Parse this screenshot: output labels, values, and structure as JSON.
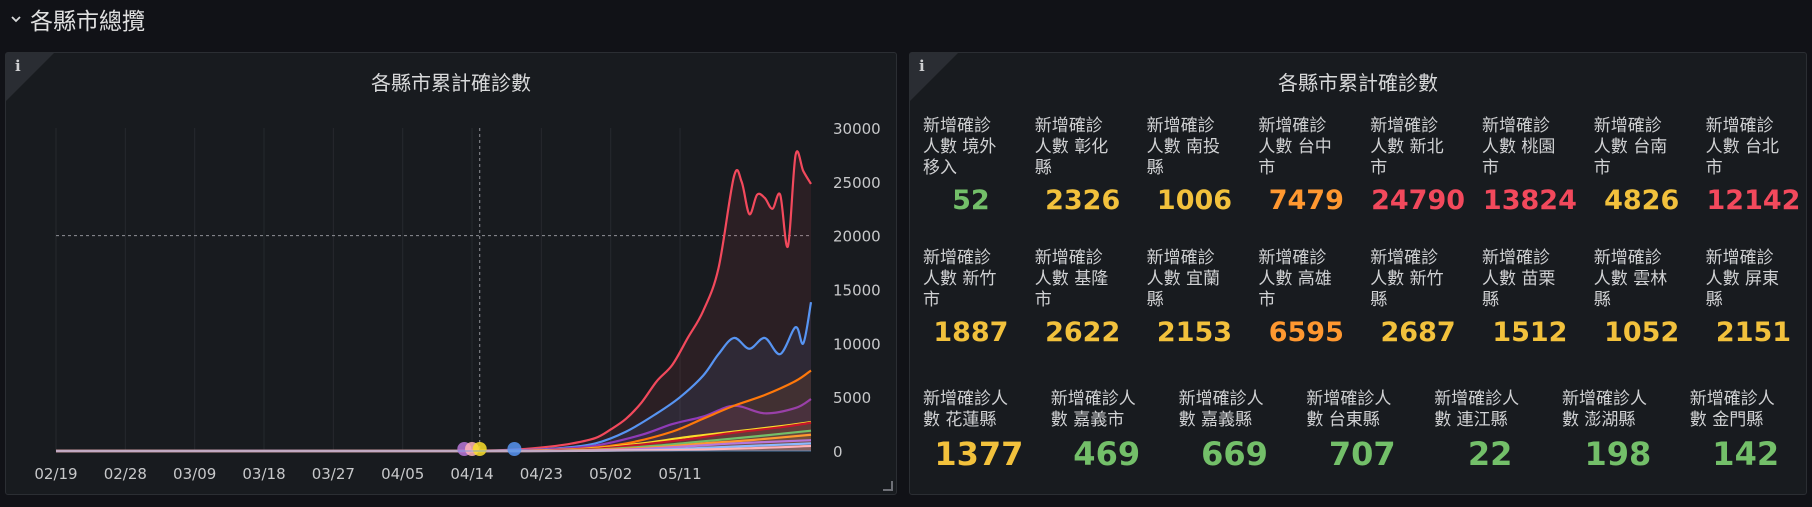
{
  "row": {
    "title": "各縣市總攬",
    "chevron_icon": "chevron-down-icon"
  },
  "left_panel": {
    "title": "各縣市累計確診數",
    "info_icon": "i"
  },
  "right_panel": {
    "title": "各縣市累計確診數",
    "info_icon": "i"
  },
  "colors": {
    "green": "#73bf69",
    "yellow": "#fade2a",
    "gold": "#f2c13c",
    "orange": "#ff9830",
    "red": "#f2495c"
  },
  "stats_row1": [
    {
      "label": "新增確診\n人數 境外\n移入",
      "value": "52",
      "color": "#73bf69"
    },
    {
      "label": "新增確診\n人數 彰化\n縣",
      "value": "2326",
      "color": "#f2c13c"
    },
    {
      "label": "新增確診\n人數 南投\n縣",
      "value": "1006",
      "color": "#f2c13c"
    },
    {
      "label": "新增確診\n人數 台中\n市",
      "value": "7479",
      "color": "#ff9830"
    },
    {
      "label": "新增確診\n人數 新北\n市",
      "value": "24790",
      "color": "#f2495c"
    },
    {
      "label": "新增確診\n人數 桃園\n市",
      "value": "13824",
      "color": "#f2495c"
    },
    {
      "label": "新增確診\n人數 台南\n市",
      "value": "4826",
      "color": "#f2c13c"
    },
    {
      "label": "新增確診\n人數 台北\n市",
      "value": "12142",
      "color": "#f2495c"
    }
  ],
  "stats_row2": [
    {
      "label": "新增確診\n人數 新竹\n市",
      "value": "1887",
      "color": "#f2c13c"
    },
    {
      "label": "新增確診\n人數 基隆\n市",
      "value": "2622",
      "color": "#f2c13c"
    },
    {
      "label": "新增確診\n人數 宜蘭\n縣",
      "value": "2153",
      "color": "#f2c13c"
    },
    {
      "label": "新增確診\n人數 高雄\n市",
      "value": "6595",
      "color": "#ff9830"
    },
    {
      "label": "新增確診\n人數 新竹\n縣",
      "value": "2687",
      "color": "#f2c13c"
    },
    {
      "label": "新增確診\n人數 苗栗\n縣",
      "value": "1512",
      "color": "#f2c13c"
    },
    {
      "label": "新增確診\n人數 雲林\n縣",
      "value": "1052",
      "color": "#f2c13c"
    },
    {
      "label": "新增確診\n人數 屏東\n縣",
      "value": "2151",
      "color": "#f2c13c"
    }
  ],
  "stats_row3": [
    {
      "label": "新增確診人\n數 花蓮縣",
      "value": "1377",
      "color": "#f2c13c"
    },
    {
      "label": "新增確診人\n數 嘉義市",
      "value": "469",
      "color": "#73bf69"
    },
    {
      "label": "新增確診人\n數 嘉義縣",
      "value": "669",
      "color": "#73bf69"
    },
    {
      "label": "新增確診人\n數 台東縣",
      "value": "707",
      "color": "#73bf69"
    },
    {
      "label": "新增確診人\n數 連江縣",
      "value": "22",
      "color": "#73bf69"
    },
    {
      "label": "新增確診人\n數 澎湖縣",
      "value": "198",
      "color": "#73bf69"
    },
    {
      "label": "新增確診人\n數 金門縣",
      "value": "142",
      "color": "#73bf69"
    }
  ],
  "chart_data": {
    "type": "line",
    "title": "各縣市累計確診數",
    "x_ticks": [
      "02/19",
      "02/28",
      "03/09",
      "03/18",
      "03/27",
      "04/05",
      "04/14",
      "04/23",
      "05/02",
      "05/11"
    ],
    "y_ticks": [
      0,
      5000,
      10000,
      15000,
      20000,
      25000,
      30000
    ],
    "ylim": [
      0,
      30000
    ],
    "x_range_days": [
      0,
      98
    ],
    "threshold": 20000,
    "crosshair_x_day": 55,
    "series": [
      {
        "color": "#f2495c",
        "points": [
          [
            0,
            0
          ],
          [
            50,
            0
          ],
          [
            55,
            30
          ],
          [
            60,
            150
          ],
          [
            64,
            400
          ],
          [
            67,
            700
          ],
          [
            70,
            1200
          ],
          [
            72,
            2000
          ],
          [
            74,
            3000
          ],
          [
            76,
            4500
          ],
          [
            78,
            6500
          ],
          [
            80,
            8000
          ],
          [
            82,
            10500
          ],
          [
            84,
            13000
          ],
          [
            86,
            17000
          ],
          [
            88,
            25500
          ],
          [
            89,
            25000
          ],
          [
            90,
            22000
          ],
          [
            91,
            23800
          ],
          [
            92,
            23500
          ],
          [
            93,
            22500
          ],
          [
            94,
            23800
          ],
          [
            95,
            19000
          ],
          [
            96,
            27500
          ],
          [
            97,
            26000
          ],
          [
            98,
            24800
          ]
        ]
      },
      {
        "color": "#5794f2",
        "points": [
          [
            0,
            0
          ],
          [
            50,
            0
          ],
          [
            56,
            40
          ],
          [
            62,
            120
          ],
          [
            66,
            300
          ],
          [
            70,
            700
          ],
          [
            74,
            1800
          ],
          [
            78,
            3500
          ],
          [
            81,
            5000
          ],
          [
            84,
            7000
          ],
          [
            86,
            9000
          ],
          [
            88,
            10500
          ],
          [
            90,
            9500
          ],
          [
            92,
            10500
          ],
          [
            94,
            9000
          ],
          [
            96,
            11500
          ],
          [
            97,
            10000
          ],
          [
            98,
            13824
          ]
        ]
      },
      {
        "color": "#8f3bb8",
        "points": [
          [
            0,
            0
          ],
          [
            50,
            0
          ],
          [
            58,
            30
          ],
          [
            64,
            150
          ],
          [
            70,
            500
          ],
          [
            76,
            1500
          ],
          [
            80,
            2500
          ],
          [
            84,
            3200
          ],
          [
            88,
            4200
          ],
          [
            92,
            3500
          ],
          [
            96,
            4000
          ],
          [
            98,
            4826
          ]
        ]
      },
      {
        "color": "#ff780a",
        "points": [
          [
            0,
            0
          ],
          [
            55,
            0
          ],
          [
            62,
            60
          ],
          [
            68,
            200
          ],
          [
            74,
            700
          ],
          [
            80,
            1800
          ],
          [
            84,
            3000
          ],
          [
            88,
            4200
          ],
          [
            92,
            5200
          ],
          [
            96,
            6500
          ],
          [
            98,
            7479
          ]
        ]
      },
      {
        "color": "#fade2a",
        "points": [
          [
            0,
            0
          ],
          [
            56,
            0
          ],
          [
            64,
            80
          ],
          [
            70,
            250
          ],
          [
            76,
            700
          ],
          [
            82,
            1300
          ],
          [
            88,
            1800
          ],
          [
            94,
            2300
          ],
          [
            98,
            2687
          ]
        ]
      },
      {
        "color": "#c4162a",
        "points": [
          [
            0,
            0
          ],
          [
            56,
            0
          ],
          [
            64,
            60
          ],
          [
            70,
            200
          ],
          [
            76,
            600
          ],
          [
            82,
            1100
          ],
          [
            88,
            1700
          ],
          [
            94,
            2200
          ],
          [
            98,
            2622
          ]
        ]
      },
      {
        "color": "#73bf69",
        "points": [
          [
            0,
            0
          ],
          [
            58,
            0
          ],
          [
            66,
            50
          ],
          [
            72,
            200
          ],
          [
            78,
            500
          ],
          [
            84,
            900
          ],
          [
            90,
            1300
          ],
          [
            98,
            1887
          ]
        ]
      },
      {
        "color": "#ff9830",
        "points": [
          [
            0,
            0
          ],
          [
            58,
            0
          ],
          [
            66,
            40
          ],
          [
            72,
            150
          ],
          [
            78,
            350
          ],
          [
            84,
            700
          ],
          [
            90,
            1000
          ],
          [
            98,
            1512
          ]
        ]
      },
      {
        "color": "#b877d9",
        "points": [
          [
            0,
            0
          ],
          [
            58,
            0
          ],
          [
            68,
            40
          ],
          [
            74,
            140
          ],
          [
            80,
            350
          ],
          [
            88,
            700
          ],
          [
            98,
            1006
          ]
        ]
      },
      {
        "color": "#8ab8ff",
        "points": [
          [
            0,
            0
          ],
          [
            60,
            0
          ],
          [
            70,
            30
          ],
          [
            78,
            120
          ],
          [
            86,
            350
          ],
          [
            98,
            707
          ]
        ]
      },
      {
        "color": "#ffb3b8",
        "points": [
          [
            0,
            0
          ],
          [
            60,
            0
          ],
          [
            70,
            20
          ],
          [
            80,
            90
          ],
          [
            90,
            250
          ],
          [
            98,
            469
          ]
        ]
      }
    ],
    "markers": [
      {
        "day": 53,
        "color": "#b877d9"
      },
      {
        "day": 54,
        "color": "#ffb3b8"
      },
      {
        "day": 55,
        "color": "#fade2a"
      },
      {
        "day": 59.5,
        "color": "#5794f2"
      }
    ]
  }
}
